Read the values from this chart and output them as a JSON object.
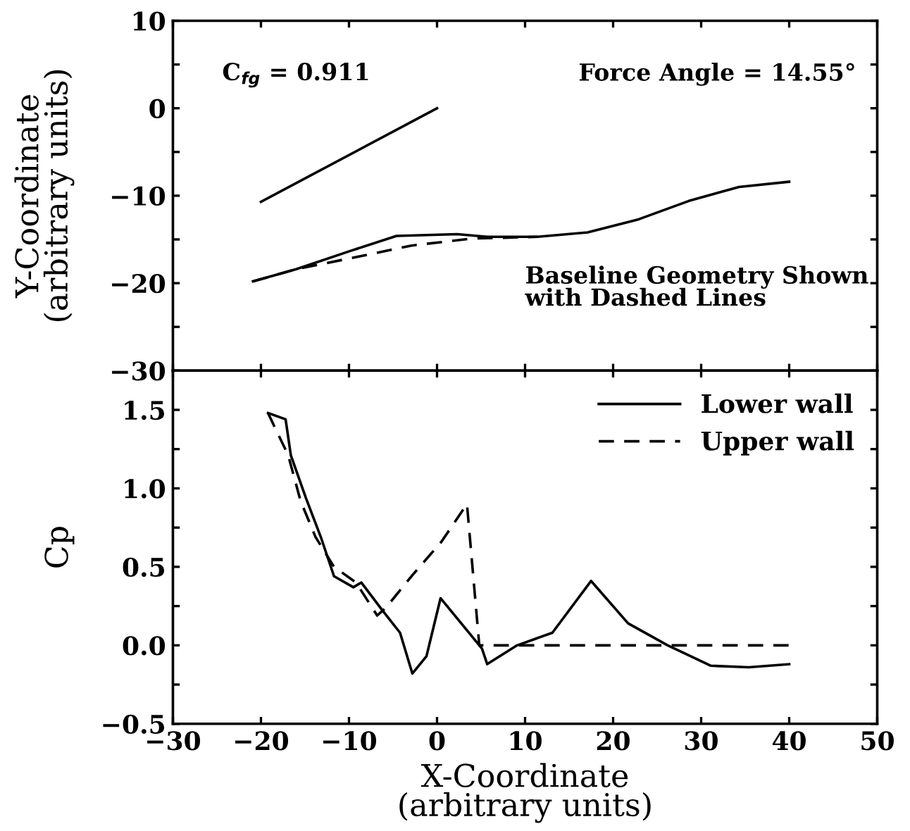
{
  "chart_data": [
    {
      "type": "line",
      "ylabel": "Y-Coordinate\n(arbitrary units)",
      "tick_labels": "y",
      "xlim": [
        -30,
        50
      ],
      "xticks": [
        {
          "value": -30,
          "label": null
        },
        {
          "value": -20,
          "label": null
        },
        {
          "value": -10,
          "label": null
        },
        {
          "value": 0,
          "label": null
        },
        {
          "value": 10,
          "label": null
        },
        {
          "value": 20,
          "label": null
        },
        {
          "value": 30,
          "label": null
        },
        {
          "value": 40,
          "label": null
        },
        {
          "value": 50,
          "label": null
        }
      ],
      "ylim": [
        -30,
        10
      ],
      "yticks": [
        {
          "value": -30,
          "label": "−30"
        },
        {
          "value": -25,
          "label": null
        },
        {
          "value": -20,
          "label": "−20"
        },
        {
          "value": -15,
          "label": null
        },
        {
          "value": -10,
          "label": "−10"
        },
        {
          "value": -5,
          "label": null
        },
        0,
        {
          "value": 5,
          "label": null
        },
        10
      ],
      "annotations": [
        "C$_{fg}$ = 0.911",
        "Force Angle = 14.55°",
        "Baseline Geometry Shown\nwith Dashed Lines"
      ],
      "series": [
        {
          "color": "#000000",
          "line_style": "solid",
          "x": [
            -20,
            0
          ],
          "values": [
            -10.7,
            0
          ]
        },
        {
          "color": "#000000",
          "line_style": "dashed",
          "x": [
            -20.9,
            -16,
            -8.6,
            -2.9,
            4,
            11.4
          ],
          "values": [
            -19.8,
            -18.4,
            -16.9,
            -15.7,
            -14.9,
            -14.7
          ]
        },
        {
          "color": "#000000",
          "line_style": "solid",
          "x": [
            -20.9,
            -16,
            -9.8,
            -4.6,
            2.3,
            5.7,
            11.4,
            17.1,
            22.9,
            28.6,
            34.3,
            40
          ],
          "values": [
            -19.8,
            -18.4,
            -16.3,
            -14.6,
            -14.4,
            -14.7,
            -14.7,
            -14.2,
            -12.7,
            -10.6,
            -9.0,
            -8.4
          ]
        }
      ]
    },
    {
      "type": "line",
      "xlabel": "X-Coordinate\n(arbitrary units)",
      "ylabel": "Cp",
      "legend": "top right",
      "xlim": [
        -30,
        50
      ],
      "xticks": [
        {
          "value": -30,
          "label": "−30"
        },
        {
          "value": -20,
          "label": "−20"
        },
        {
          "value": -10,
          "label": "−10"
        },
        0,
        10,
        20,
        30,
        40,
        50
      ],
      "ylim": [
        -0.5,
        1.75
      ],
      "yticks": [
        {
          "value": -0.5,
          "label": "−0.5"
        },
        {
          "value": -0.25,
          "label": null
        },
        {
          "value": 0,
          "label": "0.0"
        },
        {
          "value": 0.25,
          "label": null
        },
        0.5,
        {
          "value": 0.75,
          "label": null
        },
        {
          "value": 1.0,
          "label": "1.0"
        },
        {
          "value": 1.25,
          "label": null
        },
        1.5
      ],
      "series": [
        {
          "name": "Lower wall",
          "color": "#000000",
          "line_style": "solid",
          "x": [
            -19.2,
            -17.2,
            -16.6,
            -14.9,
            -13.2,
            -11.7,
            -9.5,
            -8.6,
            -6.3,
            -4.2,
            -2.8,
            -1.2,
            0.4,
            5.1,
            5.7,
            9.1,
            13.1,
            17.5,
            21.7,
            26.2,
            31.1,
            35.4,
            40
          ],
          "values": [
            1.48,
            1.44,
            1.21,
            0.94,
            0.69,
            0.44,
            0.37,
            0.4,
            0.23,
            0.08,
            -0.18,
            -0.07,
            0.3,
            -0.02,
            -0.12,
            0.0,
            0.08,
            0.41,
            0.14,
            0.0,
            -0.13,
            -0.14,
            -0.12
          ]
        },
        {
          "name": "Upper wall",
          "color": "#000000",
          "line_style": "dashed",
          "x": [
            -19.2,
            -16.9,
            -15.5,
            -13.8,
            -11.7,
            -9.2,
            -6.8,
            -5.8,
            -2.9,
            0.5,
            3.4,
            4.8,
            40
          ],
          "values": [
            1.48,
            1.21,
            0.92,
            0.69,
            0.5,
            0.4,
            0.19,
            0.24,
            0.44,
            0.66,
            0.9,
            0.0,
            0.0
          ]
        }
      ]
    }
  ]
}
